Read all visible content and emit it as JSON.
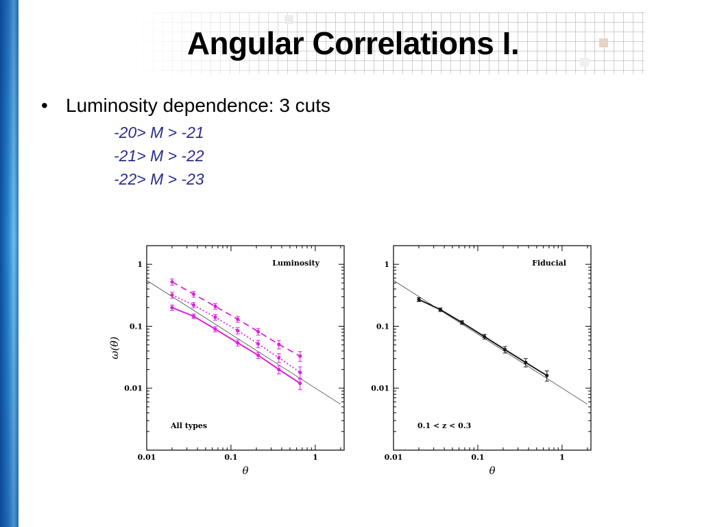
{
  "slide": {
    "title": "Angular Correlations I.",
    "bullet": "Luminosity dependence: 3 cuts",
    "sub_items": [
      "-20> M > -21",
      "-21> M > -22",
      "-22> M > -23"
    ]
  },
  "colors": {
    "left_bar": "#1f6fbf",
    "sub_text": "#2b2b8f",
    "magenta": "#e020e0",
    "fiducial": "#1a1a1a"
  },
  "chart_data": [
    {
      "type": "line",
      "log_x": true,
      "log_y": true,
      "xlim": [
        0.01,
        2.2
      ],
      "ylim": [
        0.001,
        2.0
      ],
      "xlabel": "θ",
      "ylabel": "ω(θ)",
      "x_ticks": [
        "0.01",
        "0.1",
        "1"
      ],
      "y_ticks": [
        "0.01",
        "0.1",
        "1"
      ],
      "annotations": [
        "Luminosity",
        "All types"
      ],
      "reference_line": {
        "x": [
          0.01,
          2.0
        ],
        "y": [
          0.55,
          0.0055
        ]
      },
      "x": [
        0.02,
        0.036,
        0.065,
        0.12,
        0.21,
        0.37,
        0.66
      ],
      "series": [
        {
          "style": "dashed",
          "values": [
            0.52,
            0.33,
            0.21,
            0.13,
            0.082,
            0.051,
            0.033
          ],
          "errors": [
            0.06,
            0.035,
            0.022,
            0.014,
            0.01,
            0.008,
            0.006
          ]
        },
        {
          "style": "dotted",
          "values": [
            0.32,
            0.22,
            0.14,
            0.085,
            0.052,
            0.031,
            0.018
          ],
          "errors": [
            0.035,
            0.022,
            0.015,
            0.01,
            0.007,
            0.005,
            0.004
          ]
        },
        {
          "style": "solid",
          "values": [
            0.2,
            0.145,
            0.09,
            0.054,
            0.034,
            0.02,
            0.012
          ],
          "errors": [
            0.02,
            0.012,
            0.009,
            0.006,
            0.004,
            0.003,
            0.0025
          ]
        }
      ]
    },
    {
      "type": "line",
      "log_x": true,
      "log_y": true,
      "xlim": [
        0.01,
        2.2
      ],
      "ylim": [
        0.001,
        2.0
      ],
      "xlabel": "θ",
      "ylabel": "",
      "x_ticks": [
        "0.01",
        "0.1",
        "1"
      ],
      "y_ticks": [
        "0.01",
        "0.1",
        "1"
      ],
      "annotations": [
        "Fiducial",
        "0.1 < z < 0.3"
      ],
      "reference_line": {
        "x": [
          0.01,
          2.0
        ],
        "y": [
          0.55,
          0.0055
        ]
      },
      "x": [
        0.02,
        0.036,
        0.065,
        0.12,
        0.21,
        0.37,
        0.66
      ],
      "series": [
        {
          "style": "solid",
          "values": [
            0.27,
            0.185,
            0.115,
            0.068,
            0.042,
            0.026,
            0.016
          ],
          "errors": [
            0.02,
            0.012,
            0.008,
            0.006,
            0.005,
            0.004,
            0.003
          ]
        }
      ]
    }
  ]
}
